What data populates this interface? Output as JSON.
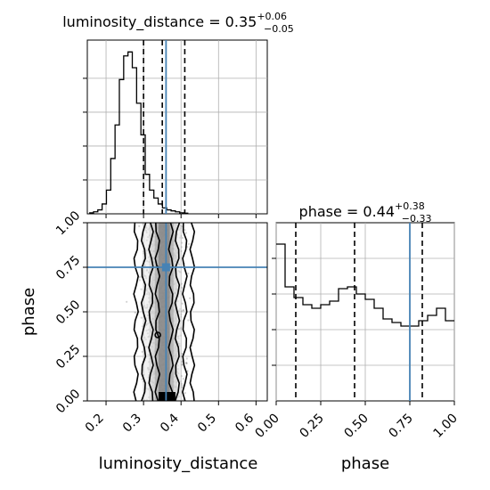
{
  "chart_data": [
    {
      "type": "histogram",
      "panel": "top-left",
      "title_base": "luminosity_distance = 0.35",
      "title_plus": "+0.06",
      "title_minus": "−0.05",
      "xlim": [
        0.15,
        0.63
      ],
      "grid": true,
      "bins_start": 0.155,
      "bin_width": 0.0115,
      "counts": [
        0.5,
        1,
        2,
        5,
        12,
        28,
        45,
        68,
        80,
        82,
        74,
        56,
        40,
        20,
        12,
        8,
        5,
        3,
        2,
        1.5,
        1,
        0.5,
        0.3
      ],
      "ymax": 88,
      "quantile_lines": [
        0.3,
        0.35,
        0.41
      ],
      "truth": 0.36,
      "colors": {
        "hist": "#000000",
        "truth": "#4682b4",
        "grid": "#b0b0b0"
      }
    },
    {
      "type": "histogram",
      "panel": "bottom-right",
      "title_base": "phase = 0.44",
      "title_plus": "+0.38",
      "title_minus": "−0.33",
      "xlim": [
        0.0,
        1.0
      ],
      "xlabel": "phase",
      "xticks": [
        "0.00",
        "0.25",
        "0.50",
        "0.75",
        "1.00"
      ],
      "xtick_values": [
        0.0,
        0.25,
        0.5,
        0.75,
        1.0
      ],
      "grid": true,
      "bins_start": 0.0,
      "bin_width": 0.05,
      "counts": [
        88,
        64,
        58,
        54,
        52,
        54,
        56,
        63,
        64,
        60,
        57,
        52,
        46,
        44,
        42,
        42,
        45,
        48,
        52,
        45
      ],
      "ymax": 100,
      "quantile_lines": [
        0.11,
        0.44,
        0.82
      ],
      "truth": 0.75,
      "colors": {
        "hist": "#000000",
        "truth": "#4682b4",
        "grid": "#b0b0b0"
      }
    },
    {
      "type": "scatter",
      "panel": "bottom-left",
      "xlim": [
        0.15,
        0.63
      ],
      "ylim": [
        0.0,
        1.0
      ],
      "xlabel": "luminosity_distance",
      "ylabel": "phase",
      "xticks": [
        "0.2",
        "0.3",
        "0.4",
        "0.5",
        "0.6"
      ],
      "xtick_values": [
        0.2,
        0.3,
        0.4,
        0.5,
        0.6
      ],
      "yticks": [
        "0.00",
        "0.25",
        "0.50",
        "0.75",
        "1.00"
      ],
      "ytick_values": [
        0.0,
        0.25,
        0.5,
        0.75,
        1.0
      ],
      "grid": true,
      "contour_halfwidths": [
        0.075,
        0.055,
        0.035,
        0.018
      ],
      "contour_center": 0.355,
      "truth": {
        "x": 0.36,
        "y": 0.75
      },
      "colors": {
        "points": "#808080",
        "contour": "#000000",
        "truth": "#4682b4",
        "grid": "#b0b0b0"
      }
    }
  ]
}
